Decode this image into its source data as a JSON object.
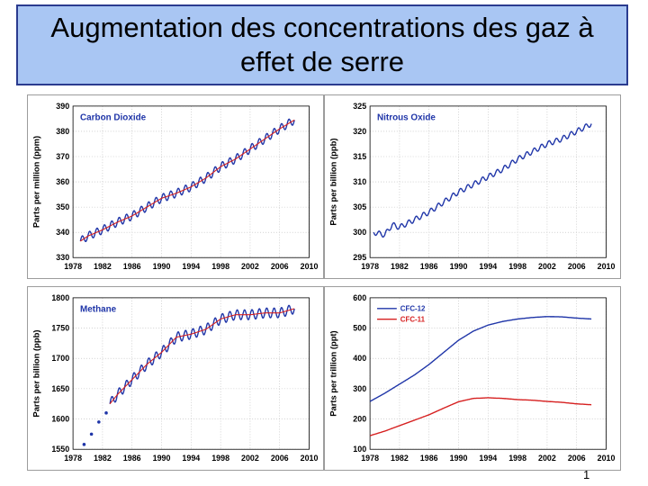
{
  "slide": {
    "title": "Augmentation des concentrations des gaz à effet de serre",
    "page_number": "1"
  },
  "colors": {
    "observed": "#1f35a8",
    "trend": "#d62020",
    "cfc12": "#1f35a8",
    "cfc11": "#d62020",
    "label_blue": "#1f35a8"
  },
  "chart_data": [
    {
      "id": "co2",
      "type": "line",
      "title": "Carbon Dioxide",
      "xlabel": "",
      "ylabel": "Parts per million (ppm)",
      "xlim": [
        1978,
        2010
      ],
      "ylim": [
        330,
        390
      ],
      "xticks": [
        "1978",
        "1982",
        "1986",
        "1990",
        "1994",
        "1998",
        "2002",
        "2006",
        "2010"
      ],
      "yticks": [
        "330",
        "340",
        "350",
        "360",
        "370",
        "380",
        "390"
      ],
      "grid": true,
      "seasonal_amplitude": 1.6,
      "series": [
        {
          "role": "observed",
          "x": [
            1979,
            1980,
            1982,
            1984,
            1986,
            1988,
            1990,
            1992,
            1994,
            1996,
            1998,
            2000,
            2002,
            2004,
            2006,
            2008
          ],
          "y": [
            336.5,
            338.5,
            341,
            344,
            346.5,
            350,
            353.5,
            355.5,
            358,
            361.5,
            366,
            369,
            373,
            377,
            381,
            384.5
          ]
        },
        {
          "role": "trend",
          "x": [
            1979,
            1980,
            1982,
            1984,
            1986,
            1988,
            1990,
            1992,
            1994,
            1996,
            1998,
            2000,
            2002,
            2004,
            2006,
            2008
          ],
          "y": [
            336.5,
            338.5,
            341,
            344,
            346.5,
            350,
            353.5,
            355.5,
            358,
            361.5,
            366,
            369,
            373,
            377,
            381,
            384.5
          ]
        }
      ]
    },
    {
      "id": "n2o",
      "type": "line",
      "title": "Nitrous Oxide",
      "xlabel": "",
      "ylabel": "Parts per billion (ppb)",
      "xlim": [
        1978,
        2010
      ],
      "ylim": [
        295,
        325
      ],
      "xticks": [
        "1978",
        "1982",
        "1986",
        "1990",
        "1994",
        "1998",
        "2002",
        "2006",
        "2010"
      ],
      "yticks": [
        "295",
        "300",
        "305",
        "310",
        "315",
        "320",
        "325"
      ],
      "grid": true,
      "seasonal_amplitude": 0.5,
      "series": [
        {
          "role": "observed",
          "x": [
            1978.5,
            1980,
            1981,
            1982,
            1984,
            1986,
            1988,
            1990,
            1992,
            1994,
            1996,
            1998,
            2000,
            2002,
            2004,
            2006,
            2008
          ],
          "y": [
            300,
            299.5,
            301.5,
            301,
            302.5,
            304,
            306,
            308,
            309.5,
            311,
            312.5,
            314.5,
            316,
            317.5,
            318.5,
            320,
            321.5
          ]
        }
      ]
    },
    {
      "id": "ch4",
      "type": "line",
      "title": "Methane",
      "xlabel": "",
      "ylabel": "Parts per billion (ppb)",
      "xlim": [
        1978,
        2010
      ],
      "ylim": [
        1550,
        1800
      ],
      "xticks": [
        "1978",
        "1982",
        "1986",
        "1990",
        "1994",
        "1998",
        "2002",
        "2006",
        "2010"
      ],
      "yticks": [
        "1550",
        "1600",
        "1650",
        "1700",
        "1750",
        "1800"
      ],
      "grid": true,
      "seasonal_amplitude": 8,
      "early_points": {
        "x": [
          1979.5,
          1980.5,
          1981.5,
          1982.5
        ],
        "y": [
          1558,
          1575,
          1595,
          1610
        ]
      },
      "series": [
        {
          "role": "observed",
          "x": [
            1983,
            1984,
            1986,
            1988,
            1990,
            1992,
            1994,
            1996,
            1998,
            2000,
            2002,
            2004,
            2006,
            2008
          ],
          "y": [
            1625,
            1640,
            1665,
            1690,
            1710,
            1735,
            1740,
            1748,
            1765,
            1772,
            1772,
            1775,
            1775,
            1782
          ]
        },
        {
          "role": "trend",
          "x": [
            1983,
            1984,
            1986,
            1988,
            1990,
            1992,
            1994,
            1996,
            1998,
            2000,
            2002,
            2004,
            2006,
            2008
          ],
          "y": [
            1625,
            1640,
            1665,
            1690,
            1710,
            1735,
            1740,
            1748,
            1765,
            1772,
            1772,
            1775,
            1775,
            1782
          ]
        }
      ]
    },
    {
      "id": "cfc",
      "type": "line",
      "title": "",
      "xlabel": "",
      "ylabel": "Parts per trillion (ppt)",
      "xlim": [
        1978,
        2010
      ],
      "ylim": [
        100,
        600
      ],
      "xticks": [
        "1978",
        "1982",
        "1986",
        "1990",
        "1994",
        "1998",
        "2002",
        "2006",
        "2010"
      ],
      "yticks": [
        "100",
        "200",
        "300",
        "400",
        "500",
        "600"
      ],
      "grid": true,
      "legend": "top-left",
      "seasonal_amplitude": 0,
      "series": [
        {
          "name": "CFC-12",
          "x": [
            1978,
            1980,
            1982,
            1984,
            1986,
            1988,
            1990,
            1992,
            1994,
            1996,
            1998,
            2000,
            2002,
            2004,
            2006,
            2008
          ],
          "y": [
            258,
            285,
            315,
            345,
            380,
            420,
            460,
            490,
            510,
            522,
            530,
            535,
            538,
            537,
            533,
            530
          ]
        },
        {
          "name": "CFC-11",
          "x": [
            1978,
            1980,
            1982,
            1984,
            1986,
            1988,
            1990,
            1992,
            1994,
            1996,
            1998,
            2000,
            2002,
            2004,
            2006,
            2008
          ],
          "y": [
            145,
            160,
            178,
            196,
            214,
            236,
            257,
            268,
            270,
            268,
            264,
            262,
            258,
            255,
            250,
            247
          ]
        }
      ]
    }
  ]
}
